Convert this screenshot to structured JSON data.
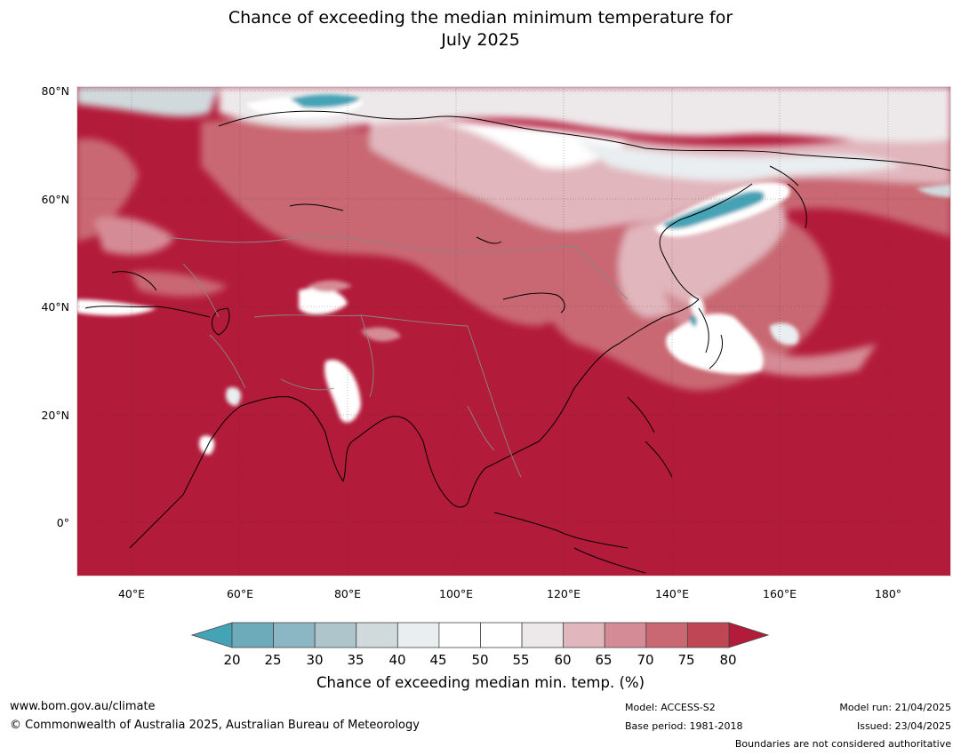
{
  "title_line1": "Chance of exceeding the median minimum temperature for",
  "title_line2": "July 2025",
  "lat_labels": [
    "80°N",
    "60°N",
    "40°N",
    "20°N",
    "0°"
  ],
  "lon_labels": [
    "40°E",
    "60°E",
    "80°E",
    "100°E",
    "120°E",
    "140°E",
    "160°E",
    "180°"
  ],
  "colorbar": {
    "ticks": [
      "20",
      "25",
      "30",
      "35",
      "40",
      "45",
      "50",
      "55",
      "60",
      "65",
      "70",
      "75",
      "80"
    ],
    "colors": [
      "#44a3b5",
      "#6dabbb",
      "#8bb7c4",
      "#aec5cc",
      "#d0dadd",
      "#e9eef0",
      "#ffffff",
      "#ffffff",
      "#ede8ea",
      "#e1b6bd",
      "#d58b95",
      "#c96772",
      "#bf4655",
      "#b31b3a"
    ],
    "title": "Chance of exceeding median min. temp. (%)"
  },
  "footer": {
    "website": "www.bom.gov.au/climate",
    "copyright": "© Commonwealth of Australia 2025, Australian Bureau of Meteorology",
    "model": "Model: ACCESS-S2",
    "base_period": "Base period: 1981-2018",
    "model_run": "Model run: 21/04/2025",
    "issued": "Issued: 23/04/2025",
    "disclaimer": "Boundaries are not considered authoritative"
  }
}
